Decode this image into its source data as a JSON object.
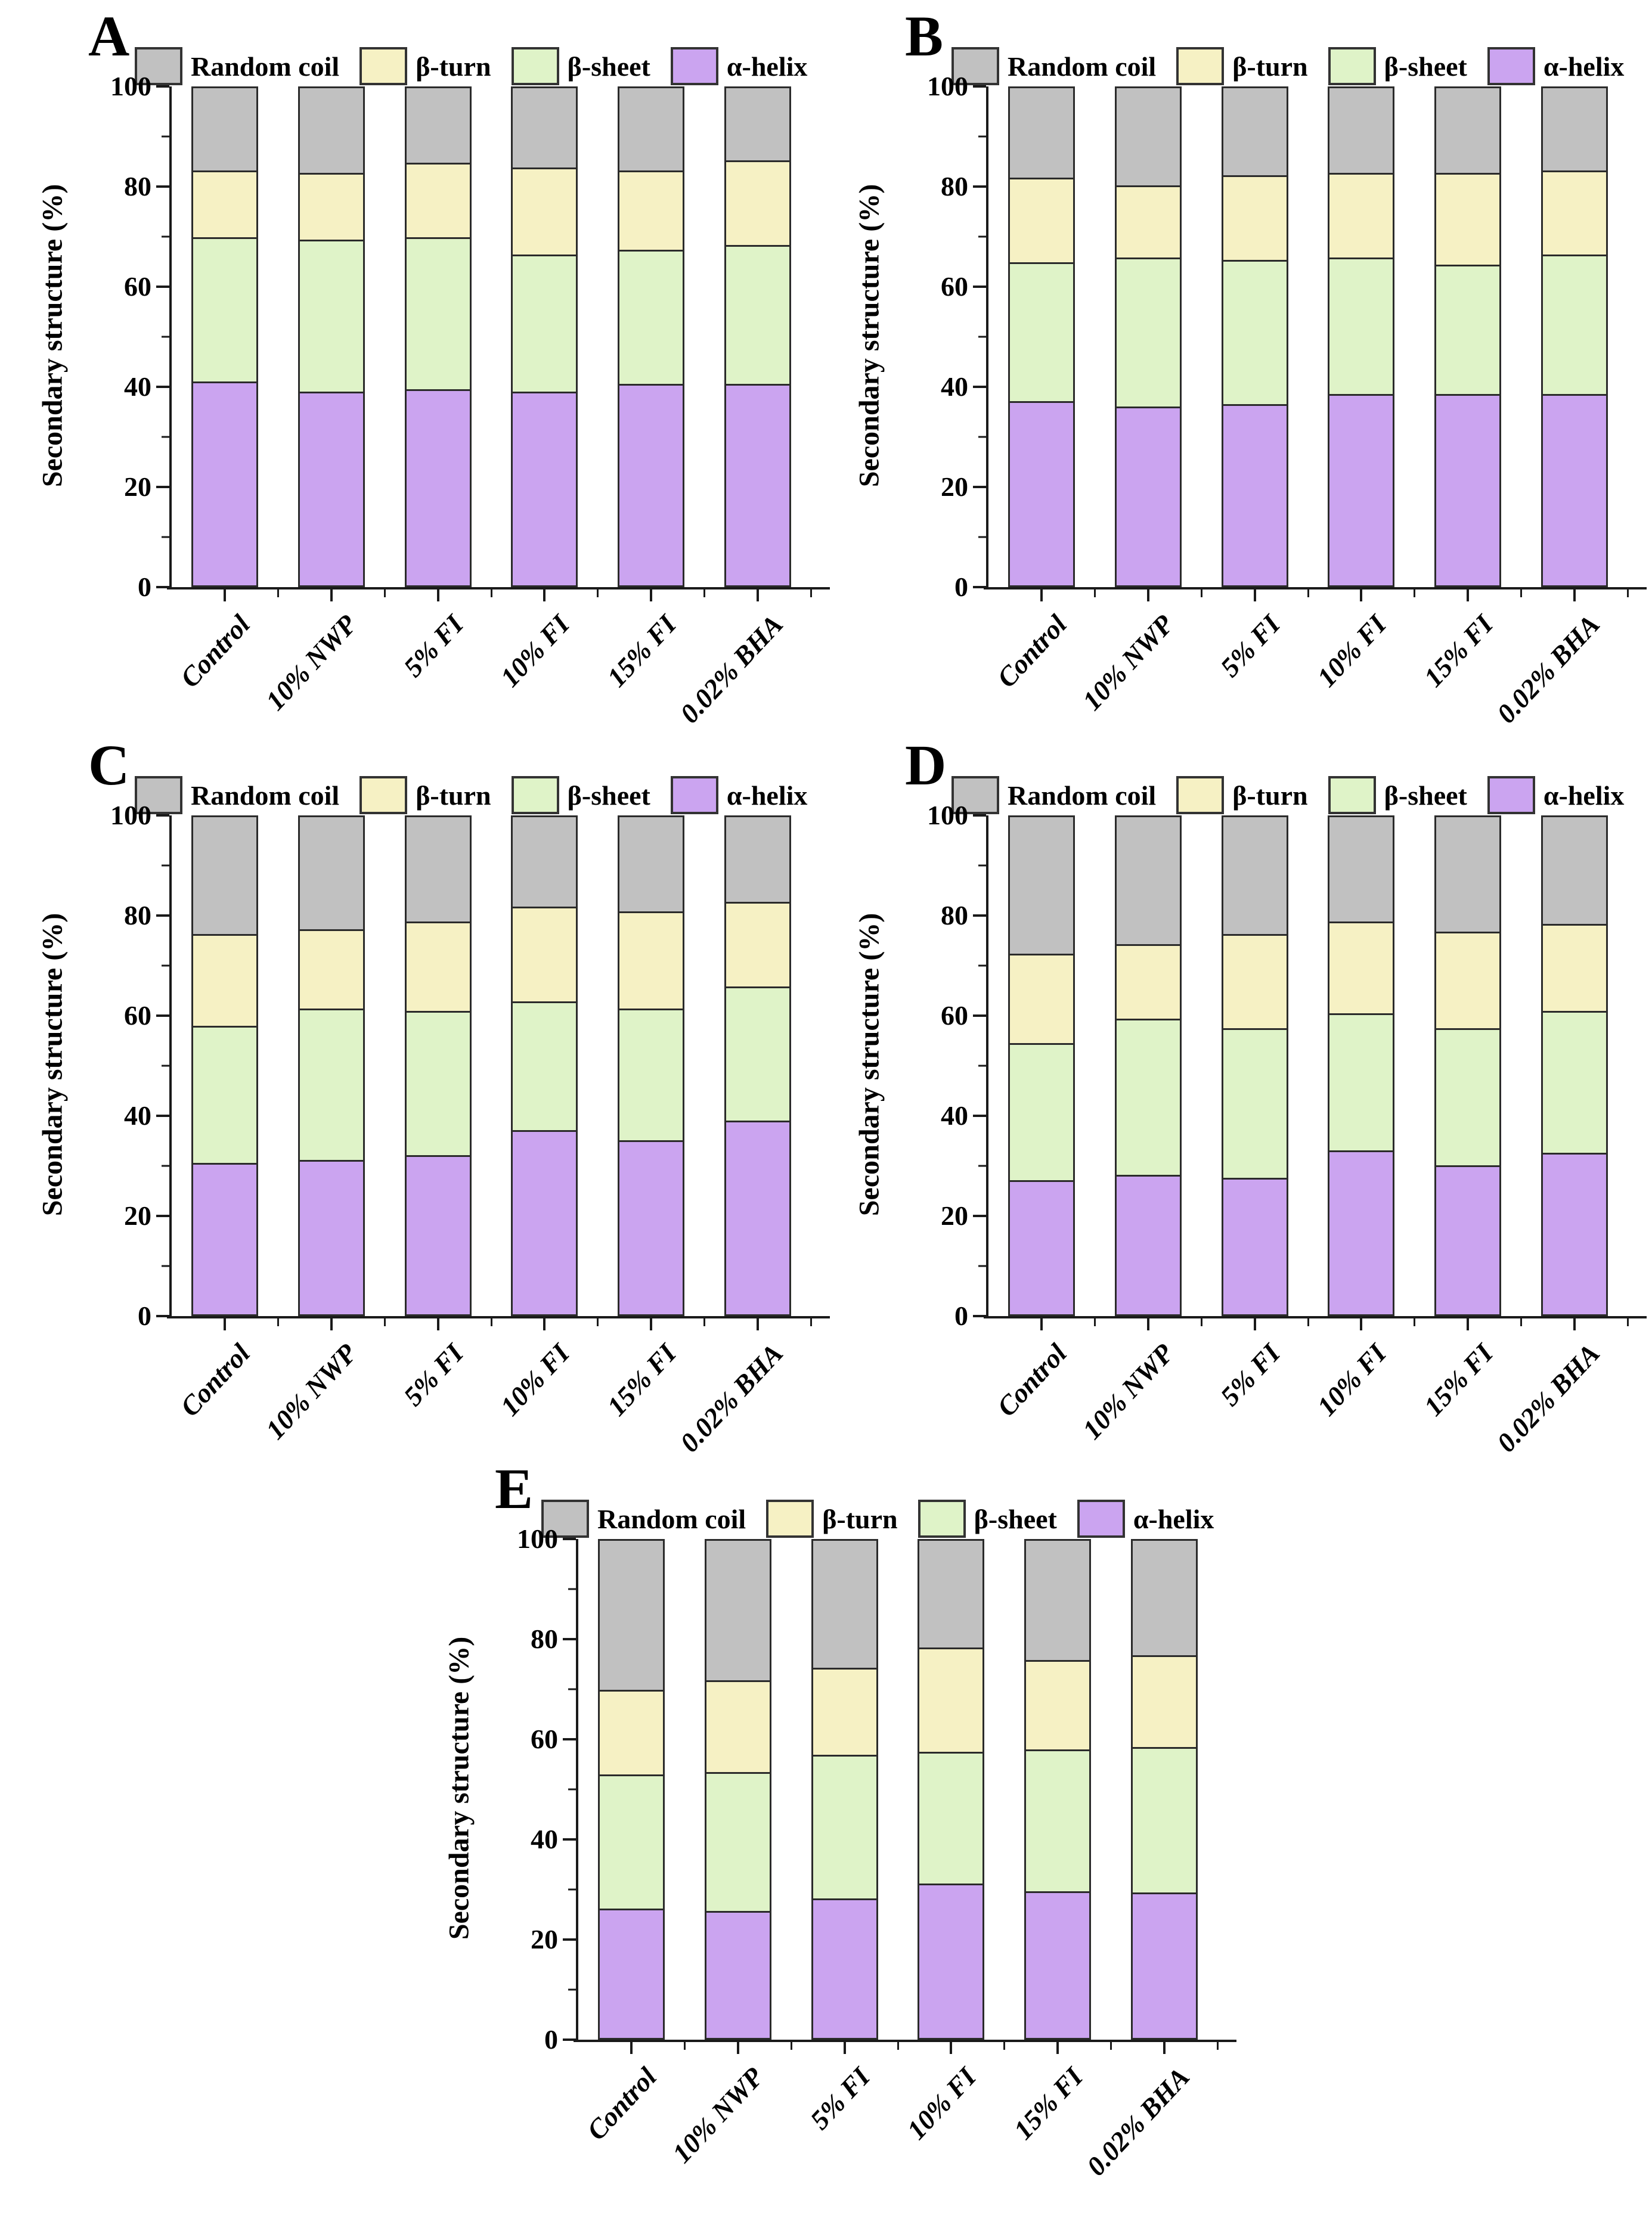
{
  "figure": {
    "ylabel": "Secondary structure (%)",
    "yticks": [
      0,
      20,
      40,
      60,
      80,
      100
    ],
    "yticks_minor": [
      10,
      30,
      50,
      70,
      90
    ],
    "legend_order": [
      "random-coil",
      "beta-turn",
      "beta-sheet",
      "alpha-helix"
    ],
    "colors": {
      "random-coil": "#c1c1c1",
      "beta-turn": "#f6f1c4",
      "beta-sheet": "#dff3c8",
      "alpha-helix": "#cba4f0",
      "segment_border": "#2b2b2b",
      "axis": "#1a1a1a"
    },
    "series_labels": {
      "random-coil": "Random coil",
      "beta-turn": "β-turn",
      "beta-sheet": "β-sheet",
      "alpha-helix": "α-helix"
    }
  },
  "chart_data": [
    {
      "type": "bar",
      "stacked": true,
      "panel": "A",
      "ylabel": "Secondary structure (%)",
      "ylim": [
        0,
        100
      ],
      "legend_position": "top",
      "categories": [
        "Control",
        "10% NWP",
        "5% FI",
        "10% FI",
        "15% FI",
        "0.02% BHA"
      ],
      "series": [
        {
          "key": "alpha-helix",
          "name": "α-helix",
          "values": [
            41,
            39,
            39.5,
            39,
            40.5,
            40.5
          ]
        },
        {
          "key": "beta-sheet",
          "name": "β-sheet",
          "values": [
            29,
            30.5,
            30.5,
            27.5,
            27,
            28
          ]
        },
        {
          "key": "beta-turn",
          "name": "β-turn",
          "values": [
            13.5,
            13.5,
            15,
            17.5,
            16,
            17
          ]
        },
        {
          "key": "random-coil",
          "name": "Random coil",
          "values": [
            16.5,
            17,
            15,
            16,
            16.5,
            14.5
          ]
        }
      ]
    },
    {
      "type": "bar",
      "stacked": true,
      "panel": "B",
      "ylabel": "Secondary structure (%)",
      "ylim": [
        0,
        100
      ],
      "legend_position": "top",
      "categories": [
        "Control",
        "10% NWP",
        "5% FI",
        "10% FI",
        "15% FI",
        "0.02% BHA"
      ],
      "series": [
        {
          "key": "alpha-helix",
          "name": "α-helix",
          "values": [
            37,
            36,
            36.5,
            38.5,
            38.5,
            38.5
          ]
        },
        {
          "key": "beta-sheet",
          "name": "β-sheet",
          "values": [
            28,
            30,
            29,
            27.5,
            26,
            28
          ]
        },
        {
          "key": "beta-turn",
          "name": "β-turn",
          "values": [
            17,
            14.5,
            17,
            17,
            18.5,
            17
          ]
        },
        {
          "key": "random-coil",
          "name": "Random coil",
          "values": [
            18,
            19.5,
            17.5,
            17,
            17,
            16.5
          ]
        }
      ]
    },
    {
      "type": "bar",
      "stacked": true,
      "panel": "C",
      "ylabel": "Secondary structure (%)",
      "ylim": [
        0,
        100
      ],
      "legend_position": "top",
      "categories": [
        "Control",
        "10% NWP",
        "5% FI",
        "10% FI",
        "15% FI",
        "0.02% BHA"
      ],
      "series": [
        {
          "key": "alpha-helix",
          "name": "α-helix",
          "values": [
            30.5,
            31,
            32,
            37,
            35,
            39
          ]
        },
        {
          "key": "beta-sheet",
          "name": "β-sheet",
          "values": [
            27.5,
            30.5,
            29,
            26,
            26.5,
            27
          ]
        },
        {
          "key": "beta-turn",
          "name": "β-turn",
          "values": [
            18.5,
            16,
            18,
            19,
            19.5,
            17
          ]
        },
        {
          "key": "random-coil",
          "name": "Random coil",
          "values": [
            23.5,
            22.5,
            21,
            18,
            19,
            17
          ]
        }
      ]
    },
    {
      "type": "bar",
      "stacked": true,
      "panel": "D",
      "ylabel": "Secondary structure (%)",
      "ylim": [
        0,
        100
      ],
      "legend_position": "top",
      "categories": [
        "Control",
        "10% NWP",
        "5% FI",
        "10% FI",
        "15% FI",
        "0.02% BHA"
      ],
      "series": [
        {
          "key": "alpha-helix",
          "name": "α-helix",
          "values": [
            27,
            28,
            27.5,
            33,
            30,
            32.5
          ]
        },
        {
          "key": "beta-sheet",
          "name": "β-sheet",
          "values": [
            27.5,
            31.5,
            30,
            27.5,
            27.5,
            28.5
          ]
        },
        {
          "key": "beta-turn",
          "name": "β-turn",
          "values": [
            18,
            15,
            19,
            18.5,
            19.5,
            17.5
          ]
        },
        {
          "key": "random-coil",
          "name": "Random coil",
          "values": [
            27.5,
            25.5,
            23.5,
            21,
            23,
            21.5
          ]
        }
      ]
    },
    {
      "type": "bar",
      "stacked": true,
      "panel": "E",
      "ylabel": "Secondary structure (%)",
      "ylim": [
        0,
        100
      ],
      "legend_position": "top",
      "categories": [
        "Control",
        "10% NWP",
        "5% FI",
        "10% FI",
        "15% FI",
        "0.02% BHA"
      ],
      "series": [
        {
          "key": "alpha-helix",
          "name": "α-helix",
          "values": [
            26,
            25.5,
            28,
            31,
            29.5,
            29.3
          ]
        },
        {
          "key": "beta-sheet",
          "name": "β-sheet",
          "values": [
            27,
            28,
            29,
            26.5,
            28.5,
            29.2
          ]
        },
        {
          "key": "beta-turn",
          "name": "β-turn",
          "values": [
            17,
            18.5,
            17.5,
            21,
            18,
            18.5
          ]
        },
        {
          "key": "random-coil",
          "name": "Random coil",
          "values": [
            30,
            28,
            25.5,
            21.5,
            24,
            23
          ]
        }
      ]
    }
  ]
}
